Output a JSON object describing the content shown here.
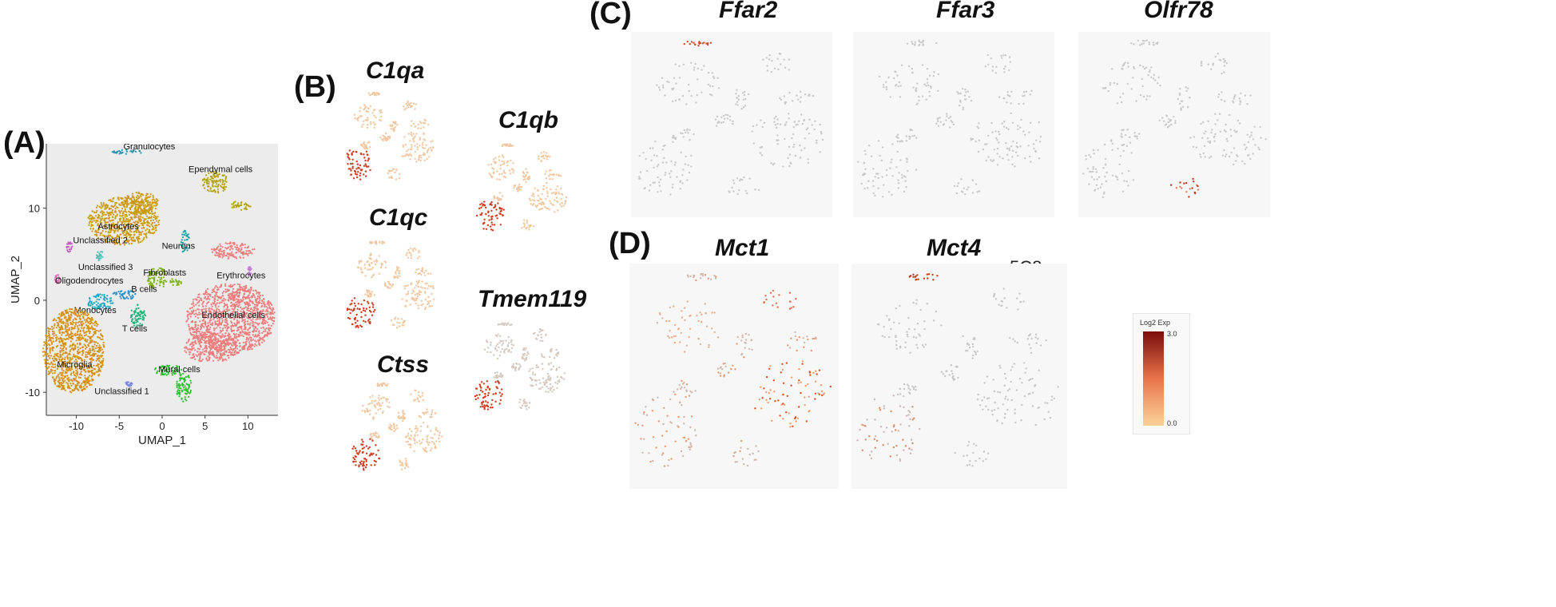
{
  "panels": {
    "a": {
      "label": "(A)",
      "chart_data": {
        "type": "scatter",
        "title": "",
        "xlabel": "UMAP_1",
        "ylabel": "UMAP_2",
        "xlim": [
          -13.5,
          13.5
        ],
        "ylim": [
          -12.5,
          17
        ],
        "x_ticks": [
          -10,
          -5,
          0,
          5,
          10
        ],
        "y_ticks": [
          -10,
          0,
          10
        ],
        "x_tick_labels": [
          "-10",
          "-5",
          "0",
          "5",
          "10"
        ],
        "y_tick_labels": [
          "-10",
          "0",
          "10"
        ],
        "clusters": [
          {
            "name": "Granulocytes",
            "color": "#1f8fae",
            "label_x": -1.5,
            "label_y": 16.4
          },
          {
            "name": "Ependymal cells",
            "color": "#b3a300",
            "label_x": 6.8,
            "label_y": 13.9
          },
          {
            "name": "Astrocytes",
            "color": "#cc9a06",
            "label_x": -5.1,
            "label_y": 7.7
          },
          {
            "name": "Unclassified 2",
            "color": "#c55fc2",
            "label_x": -7.2,
            "label_y": 6.2
          },
          {
            "name": "Neurons",
            "color": "#1aa1a8",
            "label_x": 1.9,
            "label_y": 5.6
          },
          {
            "name": "Unclassified 3",
            "color": "#55c0b4",
            "label_x": -6.6,
            "label_y": 3.3
          },
          {
            "name": "Fibroblasts",
            "color": "#7fb11f",
            "label_x": 0.3,
            "label_y": 2.7
          },
          {
            "name": "Erythrocytes",
            "color": "#c77bd9",
            "label_x": 9.2,
            "label_y": 2.4
          },
          {
            "name": "Oligodendrocytes",
            "color": "#e06ab7",
            "label_x": -8.5,
            "label_y": 1.8
          },
          {
            "name": "B cells",
            "color": "#2f8fc9",
            "label_x": -2.1,
            "label_y": 0.9
          },
          {
            "name": "Monocytes",
            "color": "#18a9c2",
            "label_x": -7.8,
            "label_y": -1.4
          },
          {
            "name": "Endothelial cells",
            "color": "#f07c7c",
            "label_x": 8.3,
            "label_y": -1.9
          },
          {
            "name": "T cells",
            "color": "#19b377",
            "label_x": -3.2,
            "label_y": -3.4
          },
          {
            "name": "Microglia",
            "color": "#d7900d",
            "label_x": -10.2,
            "label_y": -7.3
          },
          {
            "name": "Mural cells",
            "color": "#2fbf2f",
            "label_x": 2.0,
            "label_y": -7.8
          },
          {
            "name": "Unclassified 1",
            "color": "#7b8ae8",
            "label_x": -4.7,
            "label_y": -10.2
          }
        ]
      }
    },
    "b": {
      "label": "(B)",
      "genes": [
        "C1qa",
        "C1qb",
        "C1qc",
        "Tmem119",
        "Ctss"
      ]
    },
    "c": {
      "label": "(C)",
      "genes": [
        "Ffar2",
        "Ffar3",
        "Olfr78"
      ]
    },
    "d": {
      "label": "(D)",
      "genes": [
        "Mct1",
        "Mct4"
      ],
      "stray_text": "5C8"
    },
    "legend": {
      "title": "Log2 Exp",
      "max_label": "3.0",
      "min_label": "0.0",
      "low_color": "#fbd39a",
      "high_color": "#7a0c0c"
    }
  }
}
